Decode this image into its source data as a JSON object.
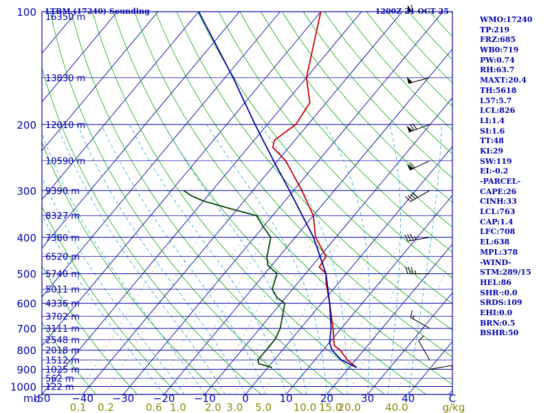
{
  "chart_data": {
    "type": "skew-t log-p sounding",
    "title_left": "LTBM (17240) Sounding",
    "title_right": "1200Z 21 OCT 25",
    "pressure_axis": {
      "unit": "mb",
      "ticks": [
        100,
        200,
        300,
        400,
        500,
        600,
        700,
        800,
        900,
        1000
      ],
      "range": [
        1050,
        100
      ],
      "scale": "log"
    },
    "temperature_axis": {
      "unit": "C",
      "ticks": [
        -50,
        -40,
        -30,
        -20,
        -10,
        0,
        10,
        20,
        30,
        40
      ],
      "labels": [
        "-50",
        "−40",
        "−30",
        "−20",
        "−10",
        "0",
        "10",
        "20",
        "30",
        "40"
      ]
    },
    "mixing_ratio_axis": {
      "unit": "g/kg",
      "ticks": [
        0.1,
        0.2,
        0.6,
        1.0,
        2.0,
        3.0,
        5.0,
        10.0,
        15.0,
        20.0,
        40.0
      ],
      "labels": [
        "0.1",
        "0.2",
        "0.6",
        "1.0",
        "2.0",
        "3.0",
        "5.0",
        "10.0",
        "15.0",
        "20.0",
        "40.0"
      ]
    },
    "height_labels": [
      {
        "p": 103,
        "label": "16350 m"
      },
      {
        "p": 150,
        "label": "13830 m"
      },
      {
        "p": 200,
        "label": "12010 m"
      },
      {
        "p": 250,
        "label": "10590 m"
      },
      {
        "p": 300,
        "label": "9390 m"
      },
      {
        "p": 350,
        "label": "8327 m"
      },
      {
        "p": 400,
        "label": "7380 m"
      },
      {
        "p": 450,
        "label": "6520 m"
      },
      {
        "p": 500,
        "label": "5740 m"
      },
      {
        "p": 550,
        "label": "5011 m"
      },
      {
        "p": 600,
        "label": "4336 m"
      },
      {
        "p": 650,
        "label": "3702 m"
      },
      {
        "p": 700,
        "label": "3111 m"
      },
      {
        "p": 750,
        "label": "2548 m"
      },
      {
        "p": 800,
        "label": "2018 m"
      },
      {
        "p": 850,
        "label": "1512 m"
      },
      {
        "p": 900,
        "label": "1025 m"
      },
      {
        "p": 950,
        "label": "562 m"
      },
      {
        "p": 1000,
        "label": "122 m"
      }
    ],
    "series": [
      {
        "name": "temperature",
        "color": "#cc0000",
        "points": [
          {
            "p": 890,
            "t": 21.8
          },
          {
            "p": 850,
            "t": 18.0
          },
          {
            "p": 800,
            "t": 14.2
          },
          {
            "p": 778,
            "t": 11.8
          },
          {
            "p": 700,
            "t": 8.0
          },
          {
            "p": 600,
            "t": 2.0
          },
          {
            "p": 530,
            "t": -3.0
          },
          {
            "p": 500,
            "t": -5.0
          },
          {
            "p": 480,
            "t": -8.0
          },
          {
            "p": 450,
            "t": -8.5
          },
          {
            "p": 400,
            "t": -15.0
          },
          {
            "p": 350,
            "t": -20.0
          },
          {
            "p": 300,
            "t": -28.0
          },
          {
            "p": 250,
            "t": -38.0
          },
          {
            "p": 230,
            "t": -44.0
          },
          {
            "p": 220,
            "t": -45.0
          },
          {
            "p": 200,
            "t": -43.0
          },
          {
            "p": 175,
            "t": -44.0
          },
          {
            "p": 150,
            "t": -50.0
          },
          {
            "p": 125,
            "t": -54.5
          },
          {
            "p": 100,
            "t": -60.0
          }
        ]
      },
      {
        "name": "dewpoint",
        "color": "#004400",
        "points": [
          {
            "p": 890,
            "t": 1.0
          },
          {
            "p": 870,
            "t": -3.0
          },
          {
            "p": 850,
            "t": -4.0
          },
          {
            "p": 800,
            "t": -4.0
          },
          {
            "p": 750,
            "t": -4.0
          },
          {
            "p": 700,
            "t": -5.0
          },
          {
            "p": 600,
            "t": -9.0
          },
          {
            "p": 580,
            "t": -12.0
          },
          {
            "p": 550,
            "t": -15.0
          },
          {
            "p": 500,
            "t": -17.0
          },
          {
            "p": 475,
            "t": -21.0
          },
          {
            "p": 450,
            "t": -23.0
          },
          {
            "p": 400,
            "t": -26.0
          },
          {
            "p": 375,
            "t": -30.0
          },
          {
            "p": 350,
            "t": -34.0
          },
          {
            "p": 335,
            "t": -42.0
          },
          {
            "p": 320,
            "t": -50.0
          },
          {
            "p": 310,
            "t": -54.0
          },
          {
            "p": 300,
            "t": -57.0
          }
        ]
      },
      {
        "name": "parcel",
        "color": "#0000aa",
        "points": [
          {
            "p": 890,
            "t": 21.8
          },
          {
            "p": 850,
            "t": 16.5
          },
          {
            "p": 800,
            "t": 12.2
          },
          {
            "p": 763,
            "t": 10.0
          },
          {
            "p": 700,
            "t": 7.5
          },
          {
            "p": 600,
            "t": 2.0
          },
          {
            "p": 500,
            "t": -5.0
          },
          {
            "p": 400,
            "t": -15.5
          },
          {
            "p": 300,
            "t": -31.0
          },
          {
            "p": 250,
            "t": -41.0
          },
          {
            "p": 200,
            "t": -53.0
          },
          {
            "p": 150,
            "t": -68.0
          },
          {
            "p": 100,
            "t": -90.0
          }
        ]
      }
    ],
    "wind_barbs": [
      {
        "p": 100,
        "dir": 270,
        "speed": 60
      },
      {
        "p": 150,
        "dir": 255,
        "speed": 50
      },
      {
        "p": 200,
        "dir": 250,
        "speed": 70
      },
      {
        "p": 250,
        "dir": 245,
        "speed": 60
      },
      {
        "p": 300,
        "dir": 240,
        "speed": 40
      },
      {
        "p": 400,
        "dir": 260,
        "speed": 35
      },
      {
        "p": 500,
        "dir": 270,
        "speed": 35
      },
      {
        "p": 700,
        "dir": 300,
        "speed": 15
      },
      {
        "p": 850,
        "dir": 330,
        "speed": 10
      },
      {
        "p": 900,
        "dir": 80,
        "speed": 5
      }
    ]
  },
  "indices": [
    "WMO:17240",
    "TP:219",
    "FRZ:685",
    "WB0:719",
    "PW:0.74",
    "RH:63.7",
    "MAXT:20.4",
    "TH:5618",
    "L57:5.7",
    "LCL:826",
    "LI:1.4",
    "SI:1.6",
    "TT:48",
    "KI:29",
    "SW:119",
    "EI:-0.2",
    "-PARCEL-",
    "CAPE:26",
    "CINH:33",
    "LCL:763",
    "CAP:1.4",
    "LFC:708",
    "EL:638",
    "MPL:378",
    "-WIND-",
    "STM:289/15",
    "HEL:86",
    "SHR·:0.0",
    "SRDS:109",
    "EHI:0.0",
    "BRN:0.5",
    "BSHR:50"
  ],
  "colors": {
    "frame": "#0000aa",
    "isobar": "#0000aa",
    "isotherm": "#0000aa",
    "dry_adiabat": "#00aa00",
    "moist_adiabat": "#1aa0c8",
    "mixing_ratio": "#777777",
    "mixing_ratio_label": "#888800",
    "temperature": "#cc0000",
    "dewpoint": "#004400",
    "parcel": "#0000aa",
    "wind_barb": "#000000"
  }
}
